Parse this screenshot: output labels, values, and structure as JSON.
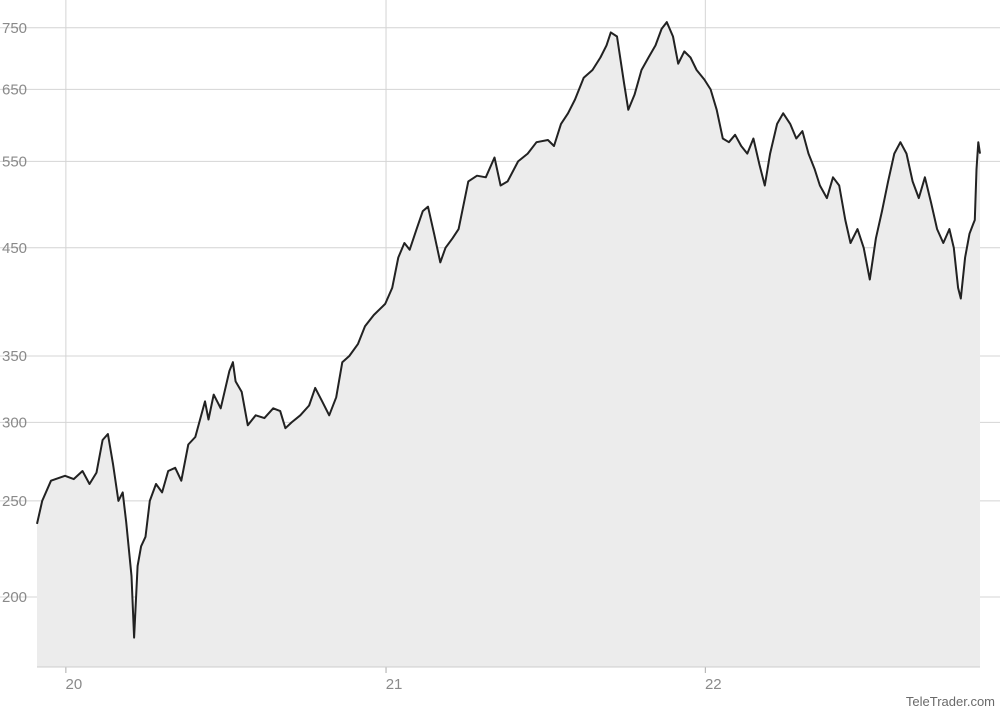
{
  "chart_data": {
    "type": "area",
    "title": "",
    "xlabel": "",
    "ylabel": "",
    "y_scale": "log",
    "grid": true,
    "x_ticks": [
      "20",
      "21",
      "22"
    ],
    "y_ticks": [
      200,
      250,
      300,
      350,
      450,
      550,
      650,
      750
    ],
    "xlim": [
      "2019-11-29",
      "2022-11-11"
    ],
    "ylim": [
      170,
      800
    ],
    "series": [
      {
        "color": "#222222",
        "fill_color": "#ececec",
        "points": [
          [
            "2019-11-29",
            237
          ],
          [
            "2019-12-05",
            250
          ],
          [
            "2019-12-15",
            262
          ],
          [
            "2019-12-31",
            265
          ],
          [
            "2020-01-10",
            263
          ],
          [
            "2020-01-20",
            268
          ],
          [
            "2020-01-28",
            260
          ],
          [
            "2020-02-05",
            267
          ],
          [
            "2020-02-12",
            288
          ],
          [
            "2020-02-18",
            292
          ],
          [
            "2020-02-24",
            272
          ],
          [
            "2020-03-01",
            250
          ],
          [
            "2020-03-06",
            255
          ],
          [
            "2020-03-10",
            238
          ],
          [
            "2020-03-16",
            210
          ],
          [
            "2020-03-19",
            182
          ],
          [
            "2020-03-23",
            215
          ],
          [
            "2020-03-27",
            225
          ],
          [
            "2020-04-01",
            230
          ],
          [
            "2020-04-06",
            250
          ],
          [
            "2020-04-13",
            260
          ],
          [
            "2020-04-20",
            255
          ],
          [
            "2020-04-27",
            268
          ],
          [
            "2020-05-05",
            270
          ],
          [
            "2020-05-12",
            262
          ],
          [
            "2020-05-20",
            285
          ],
          [
            "2020-05-28",
            290
          ],
          [
            "2020-06-08",
            315
          ],
          [
            "2020-06-12",
            302
          ],
          [
            "2020-06-18",
            320
          ],
          [
            "2020-06-26",
            310
          ],
          [
            "2020-07-06",
            338
          ],
          [
            "2020-07-10",
            345
          ],
          [
            "2020-07-13",
            330
          ],
          [
            "2020-07-20",
            322
          ],
          [
            "2020-07-27",
            298
          ],
          [
            "2020-08-05",
            305
          ],
          [
            "2020-08-15",
            303
          ],
          [
            "2020-08-25",
            310
          ],
          [
            "2020-09-02",
            308
          ],
          [
            "2020-09-08",
            296
          ],
          [
            "2020-09-15",
            300
          ],
          [
            "2020-09-25",
            305
          ],
          [
            "2020-10-05",
            312
          ],
          [
            "2020-10-12",
            325
          ],
          [
            "2020-10-20",
            315
          ],
          [
            "2020-10-28",
            305
          ],
          [
            "2020-11-05",
            318
          ],
          [
            "2020-11-12",
            345
          ],
          [
            "2020-11-20",
            350
          ],
          [
            "2020-11-30",
            360
          ],
          [
            "2020-12-08",
            375
          ],
          [
            "2020-12-18",
            385
          ],
          [
            "2020-12-31",
            395
          ],
          [
            "2021-01-08",
            410
          ],
          [
            "2021-01-15",
            440
          ],
          [
            "2021-01-22",
            455
          ],
          [
            "2021-01-28",
            448
          ],
          [
            "2021-02-05",
            470
          ],
          [
            "2021-02-12",
            490
          ],
          [
            "2021-02-18",
            495
          ],
          [
            "2021-02-25",
            465
          ],
          [
            "2021-03-04",
            435
          ],
          [
            "2021-03-10",
            450
          ],
          [
            "2021-03-18",
            460
          ],
          [
            "2021-03-25",
            470
          ],
          [
            "2021-04-05",
            525
          ],
          [
            "2021-04-15",
            532
          ],
          [
            "2021-04-25",
            530
          ],
          [
            "2021-05-05",
            555
          ],
          [
            "2021-05-12",
            520
          ],
          [
            "2021-05-20",
            525
          ],
          [
            "2021-06-01",
            550
          ],
          [
            "2021-06-12",
            560
          ],
          [
            "2021-06-22",
            575
          ],
          [
            "2021-07-05",
            578
          ],
          [
            "2021-07-12",
            570
          ],
          [
            "2021-07-20",
            600
          ],
          [
            "2021-07-28",
            615
          ],
          [
            "2021-08-05",
            635
          ],
          [
            "2021-08-15",
            668
          ],
          [
            "2021-08-25",
            680
          ],
          [
            "2021-09-03",
            700
          ],
          [
            "2021-09-10",
            720
          ],
          [
            "2021-09-15",
            742
          ],
          [
            "2021-09-22",
            735
          ],
          [
            "2021-09-30",
            660
          ],
          [
            "2021-10-05",
            620
          ],
          [
            "2021-10-12",
            642
          ],
          [
            "2021-10-20",
            680
          ],
          [
            "2021-10-28",
            700
          ],
          [
            "2021-11-05",
            720
          ],
          [
            "2021-11-12",
            748
          ],
          [
            "2021-11-18",
            760
          ],
          [
            "2021-11-25",
            735
          ],
          [
            "2021-12-01",
            690
          ],
          [
            "2021-12-08",
            710
          ],
          [
            "2021-12-15",
            700
          ],
          [
            "2021-12-22",
            680
          ],
          [
            "2021-12-31",
            665
          ],
          [
            "2022-01-07",
            650
          ],
          [
            "2022-01-14",
            620
          ],
          [
            "2022-01-21",
            580
          ],
          [
            "2022-01-28",
            575
          ],
          [
            "2022-02-04",
            585
          ],
          [
            "2022-02-11",
            570
          ],
          [
            "2022-02-18",
            560
          ],
          [
            "2022-02-25",
            580
          ],
          [
            "2022-03-04",
            545
          ],
          [
            "2022-03-10",
            520
          ],
          [
            "2022-03-16",
            560
          ],
          [
            "2022-03-24",
            600
          ],
          [
            "2022-03-31",
            615
          ],
          [
            "2022-04-08",
            600
          ],
          [
            "2022-04-15",
            580
          ],
          [
            "2022-04-22",
            590
          ],
          [
            "2022-04-29",
            560
          ],
          [
            "2022-05-06",
            540
          ],
          [
            "2022-05-12",
            520
          ],
          [
            "2022-05-20",
            505
          ],
          [
            "2022-05-27",
            530
          ],
          [
            "2022-06-03",
            520
          ],
          [
            "2022-06-10",
            480
          ],
          [
            "2022-06-16",
            455
          ],
          [
            "2022-06-24",
            470
          ],
          [
            "2022-07-01",
            450
          ],
          [
            "2022-07-08",
            418
          ],
          [
            "2022-07-15",
            460
          ],
          [
            "2022-07-22",
            490
          ],
          [
            "2022-07-29",
            525
          ],
          [
            "2022-08-05",
            560
          ],
          [
            "2022-08-12",
            575
          ],
          [
            "2022-08-19",
            560
          ],
          [
            "2022-08-26",
            525
          ],
          [
            "2022-09-02",
            505
          ],
          [
            "2022-09-09",
            530
          ],
          [
            "2022-09-16",
            500
          ],
          [
            "2022-09-23",
            470
          ],
          [
            "2022-09-30",
            455
          ],
          [
            "2022-10-07",
            470
          ],
          [
            "2022-10-12",
            450
          ],
          [
            "2022-10-17",
            410
          ],
          [
            "2022-10-20",
            400
          ],
          [
            "2022-10-25",
            440
          ],
          [
            "2022-10-30",
            465
          ],
          [
            "2022-11-03",
            475
          ],
          [
            "2022-11-05",
            480
          ],
          [
            "2022-11-07",
            540
          ],
          [
            "2022-11-09",
            575
          ],
          [
            "2022-11-11",
            560
          ]
        ]
      }
    ]
  },
  "credit": "TeleTrader.com"
}
